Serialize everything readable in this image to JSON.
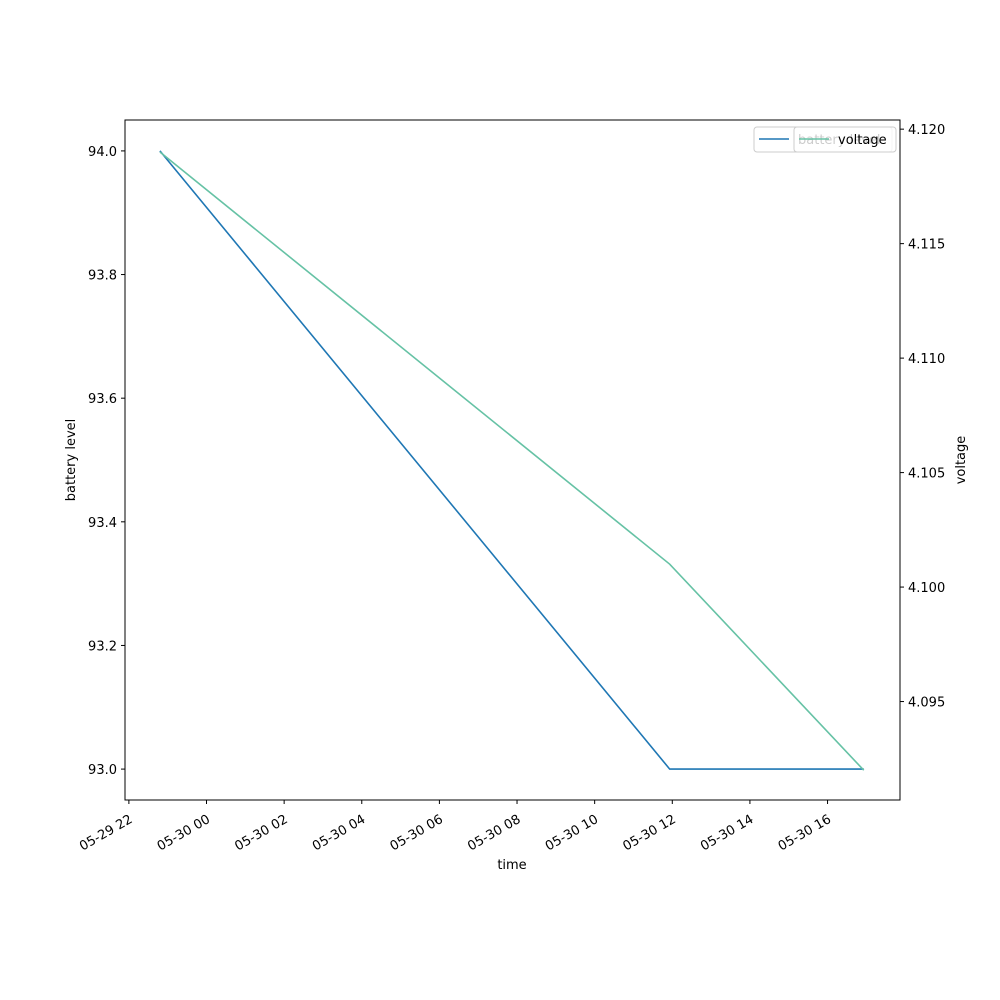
{
  "chart_data": {
    "type": "line",
    "x_label": "time",
    "y_label": "battery level",
    "y2_label": "voltage",
    "x": [
      "05-29 22:48",
      "05-30 11:56",
      "05-30 16:56"
    ],
    "xlim": [
      "05-29 21:54",
      "05-30 17:52"
    ],
    "xticks": [
      "05-29 22",
      "05-30 00",
      "05-30 02",
      "05-30 04",
      "05-30 06",
      "05-30 08",
      "05-30 10",
      "05-30 12",
      "05-30 14",
      "05-30 16"
    ],
    "ylim": [
      92.95,
      94.05
    ],
    "yticks": [
      {
        "value": 93,
        "label": "93.0"
      },
      93.2,
      93.4,
      93.6,
      93.8,
      {
        "value": 94,
        "label": "94.0"
      }
    ],
    "y2lim": [
      4.0907,
      4.1204
    ],
    "y2ticks": [
      4.095,
      {
        "value": 4.1,
        "label": "4.100"
      },
      4.105,
      {
        "value": 4.11,
        "label": "4.110"
      },
      4.115,
      {
        "value": 4.12,
        "label": "4.120"
      }
    ],
    "legend": "upper right",
    "series": [
      {
        "name": "battery level",
        "color": "#1f77b4",
        "values": [
          94,
          93,
          93
        ]
      },
      {
        "name": "voltage",
        "color": "#66c2a5",
        "axis": "y2",
        "values": [
          4.119,
          4.101,
          4.092
        ]
      }
    ]
  }
}
